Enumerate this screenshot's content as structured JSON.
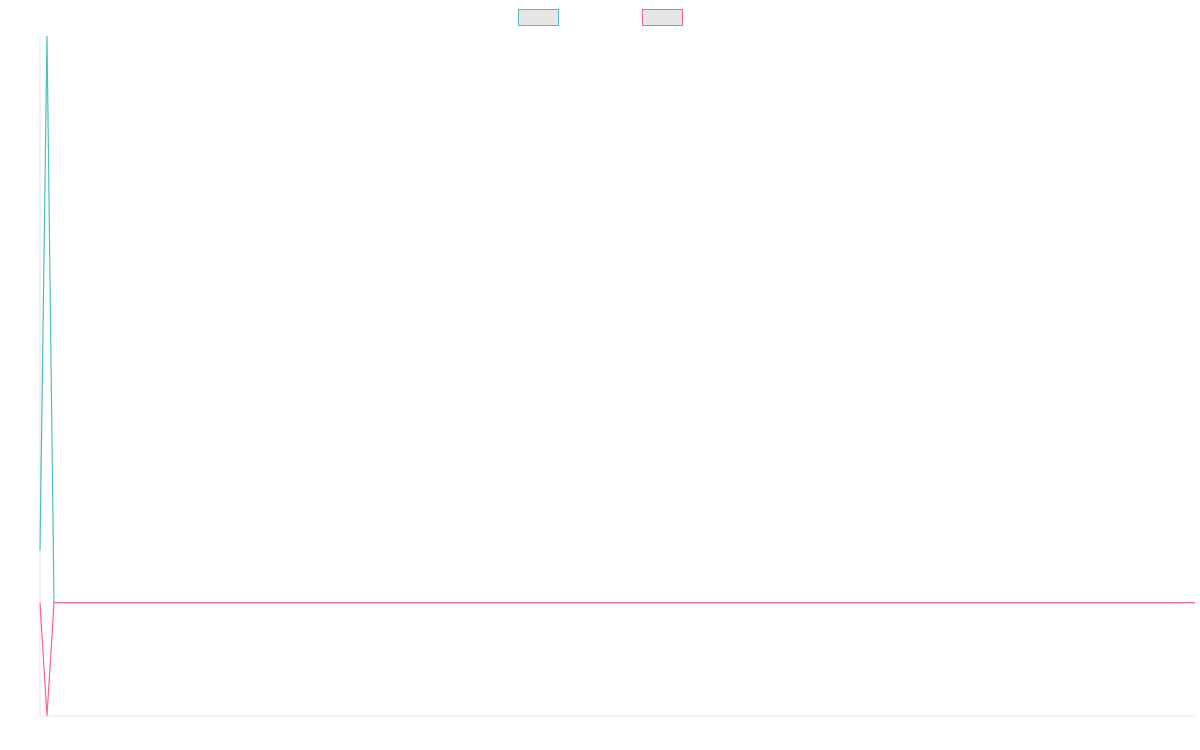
{
  "chart_data": {
    "type": "line",
    "title": "",
    "xlabel": "",
    "ylabel": "",
    "x": [
      0,
      1,
      2,
      3,
      4,
      5,
      6,
      7,
      8,
      9,
      10,
      11,
      12,
      13,
      14,
      15,
      16,
      17,
      18,
      19,
      20,
      21,
      22,
      23,
      24,
      25,
      26,
      27,
      28,
      29,
      30,
      31,
      32,
      33,
      34,
      35,
      36,
      37,
      38,
      39,
      40,
      41,
      42,
      43,
      44,
      45,
      46,
      47,
      48,
      49,
      50,
      51,
      52,
      53,
      54,
      55,
      56,
      57,
      58,
      59,
      60,
      61,
      62,
      63,
      64,
      65,
      66,
      67,
      68,
      69,
      70,
      71,
      72,
      73,
      74,
      75,
      76,
      77,
      78,
      79,
      80,
      81,
      82,
      83,
      84,
      85,
      86,
      87,
      88,
      89,
      90,
      91,
      92,
      93,
      94,
      95,
      96,
      97,
      98,
      99,
      100,
      101,
      102,
      103,
      104,
      105,
      106,
      107,
      108,
      109,
      110,
      111,
      112,
      113,
      114,
      115,
      116,
      117,
      118,
      119,
      120,
      121,
      122,
      123,
      124,
      125,
      126,
      127,
      128,
      129,
      130,
      131,
      132,
      133,
      134,
      135,
      136,
      137,
      138,
      139,
      140,
      141,
      142,
      143,
      144,
      145,
      146,
      147,
      148,
      149,
      150,
      151,
      152,
      153,
      154,
      155,
      156,
      157,
      158,
      159,
      160,
      161,
      162,
      163,
      164,
      165
    ],
    "xlim": [
      0,
      165
    ],
    "ylim": [
      -100,
      500
    ],
    "grid": false,
    "legend_position": "top-center",
    "series": [
      {
        "name": "",
        "color": "#4bc0c0",
        "values": [
          46,
          500,
          0,
          0,
          0,
          0,
          0,
          0,
          0,
          0,
          0,
          0,
          0,
          0,
          0,
          0,
          0,
          0,
          0,
          0,
          0,
          0,
          0,
          0,
          0,
          0,
          0,
          0,
          0,
          0,
          0,
          0,
          0,
          0,
          0,
          0,
          0,
          0,
          0,
          0,
          0,
          0,
          0,
          0,
          0,
          0,
          0,
          0,
          0,
          0,
          0,
          0,
          0,
          0,
          0,
          0,
          0,
          0,
          0,
          0,
          0,
          0,
          0,
          0,
          0,
          0,
          0,
          0,
          0,
          0,
          0,
          0,
          0,
          0,
          0,
          0,
          0,
          0,
          0,
          0,
          0,
          0,
          0,
          0,
          0,
          0,
          0,
          0,
          0,
          0,
          0,
          0,
          0,
          0,
          0,
          0,
          0,
          0,
          0,
          0,
          0,
          0,
          0,
          0,
          0,
          0,
          0,
          0,
          0,
          0,
          0,
          0,
          0,
          0,
          0,
          0,
          0,
          0,
          0,
          0,
          0,
          0,
          0,
          0,
          0,
          0,
          0,
          0,
          0,
          0,
          0,
          0,
          0,
          0,
          0,
          0,
          0,
          0,
          0,
          0,
          0,
          0,
          0,
          0,
          0,
          0,
          0,
          0,
          0,
          0,
          0,
          0,
          0,
          0,
          0,
          0,
          0,
          0,
          0,
          0,
          0,
          0,
          0,
          0,
          0,
          0
        ]
      },
      {
        "name": "",
        "color": "#ff6384",
        "values": [
          0,
          -100,
          0,
          0,
          0,
          0,
          0,
          0,
          0,
          0,
          0,
          0,
          0,
          0,
          0,
          0,
          0,
          0,
          0,
          0,
          0,
          0,
          0,
          0,
          0,
          0,
          0,
          0,
          0,
          0,
          0,
          0,
          0,
          0,
          0,
          0,
          0,
          0,
          0,
          0,
          0,
          0,
          0,
          0,
          0,
          0,
          0,
          0,
          0,
          0,
          0,
          0,
          0,
          0,
          0,
          0,
          0,
          0,
          0,
          0,
          0,
          0,
          0,
          0,
          0,
          0,
          0,
          0,
          0,
          0,
          0,
          0,
          0,
          0,
          0,
          0,
          0,
          0,
          0,
          0,
          0,
          0,
          0,
          0,
          0,
          0,
          0,
          0,
          0,
          0,
          0,
          0,
          0,
          0,
          0,
          0,
          0,
          0,
          0,
          0,
          0,
          0,
          0,
          0,
          0,
          0,
          0,
          0,
          0,
          0,
          0,
          0,
          0,
          0,
          0,
          0,
          0,
          0,
          0,
          0,
          0,
          0,
          0,
          0,
          0,
          0,
          0,
          0,
          0,
          0,
          0,
          0,
          0,
          0,
          0,
          0,
          0,
          0,
          0,
          0,
          0,
          0,
          0,
          0,
          0,
          0,
          0,
          0,
          0,
          0,
          0,
          0,
          0,
          0,
          0,
          0,
          0,
          0,
          0,
          0,
          0,
          0,
          0,
          0,
          0,
          0
        ]
      }
    ]
  }
}
